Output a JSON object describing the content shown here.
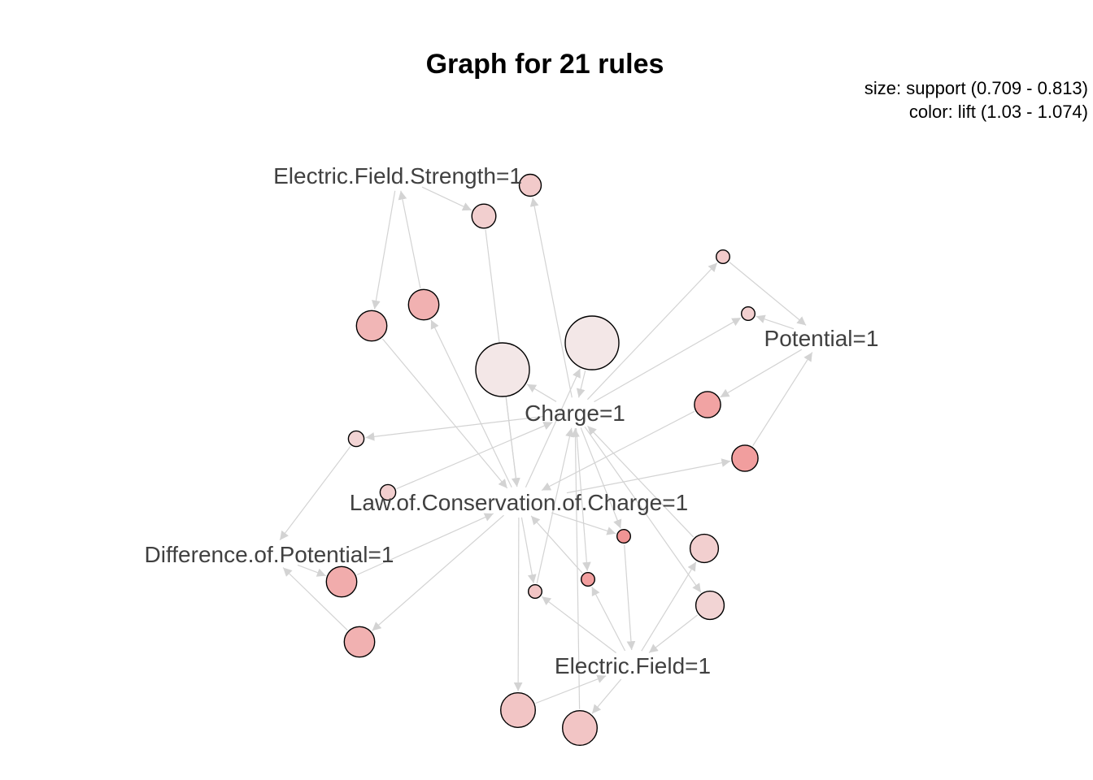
{
  "title": "Graph for 21 rules",
  "legend": {
    "size": "size: support (0.709 - 0.813)",
    "color": "color: lift (1.03 - 1.074)"
  },
  "colors": {
    "edge": "#d3d3d3",
    "label": "#404040",
    "node_stroke": "#000000",
    "lift_low": "#f3ecec",
    "lift_high": "#f08a8a"
  },
  "items": [
    {
      "id": "efs",
      "label": "Electric.Field.Strength=1"
    },
    {
      "id": "charge",
      "label": "Charge=1"
    },
    {
      "id": "potential",
      "label": "Potential=1"
    },
    {
      "id": "law",
      "label": "Law.of.Conservation.of.Charge=1"
    },
    {
      "id": "diff",
      "label": "Difference.of.Potential=1"
    },
    {
      "id": "ef",
      "label": "Electric.Field=1"
    }
  ],
  "rules": [
    {
      "id": "r1",
      "support_level": 0.25,
      "lift_level": 0.35
    },
    {
      "id": "r2",
      "support_level": 0.3,
      "lift_level": 0.3
    },
    {
      "id": "r3",
      "support_level": 0.05,
      "lift_level": 0.35
    },
    {
      "id": "r4",
      "support_level": 0.05,
      "lift_level": 0.3
    },
    {
      "id": "r5",
      "support_level": 0.45,
      "lift_level": 0.55
    },
    {
      "id": "r6",
      "support_level": 0.45,
      "lift_level": 0.6
    },
    {
      "id": "r7",
      "support_level": 1.0,
      "lift_level": 0.05
    },
    {
      "id": "r8",
      "support_level": 1.0,
      "lift_level": 0.05
    },
    {
      "id": "r9",
      "support_level": 0.35,
      "lift_level": 0.75
    },
    {
      "id": "r10",
      "support_level": 0.35,
      "lift_level": 0.8
    },
    {
      "id": "r11",
      "support_level": 0.1,
      "lift_level": 0.25
    },
    {
      "id": "r12",
      "support_level": 0.1,
      "lift_level": 0.3
    },
    {
      "id": "r13",
      "support_level": 0.05,
      "lift_level": 0.9
    },
    {
      "id": "r14",
      "support_level": 0.4,
      "lift_level": 0.3
    },
    {
      "id": "r15",
      "support_level": 0.05,
      "lift_level": 0.4
    },
    {
      "id": "r16",
      "support_level": 0.05,
      "lift_level": 0.8
    },
    {
      "id": "r17",
      "support_level": 0.4,
      "lift_level": 0.25
    },
    {
      "id": "r18",
      "support_level": 0.45,
      "lift_level": 0.65
    },
    {
      "id": "r19",
      "support_level": 0.45,
      "lift_level": 0.6
    },
    {
      "id": "r20",
      "support_level": 0.55,
      "lift_level": 0.4
    },
    {
      "id": "r21",
      "support_level": 0.55,
      "lift_level": 0.4
    }
  ],
  "edges": [
    {
      "from": "efs",
      "to": "r5"
    },
    {
      "from": "efs",
      "to": "r2"
    },
    {
      "from": "r6",
      "to": "efs"
    },
    {
      "from": "charge",
      "to": "r1"
    },
    {
      "from": "r2",
      "to": "law"
    },
    {
      "from": "r5",
      "to": "law"
    },
    {
      "from": "law",
      "to": "r6"
    },
    {
      "from": "charge",
      "to": "r3"
    },
    {
      "from": "charge",
      "to": "r4"
    },
    {
      "from": "r3",
      "to": "potential"
    },
    {
      "from": "potential",
      "to": "r4"
    },
    {
      "from": "r7",
      "to": "law"
    },
    {
      "from": "charge",
      "to": "r7"
    },
    {
      "from": "law",
      "to": "r8"
    },
    {
      "from": "r8",
      "to": "charge"
    },
    {
      "from": "potential",
      "to": "r9"
    },
    {
      "from": "r9",
      "to": "law"
    },
    {
      "from": "law",
      "to": "r10"
    },
    {
      "from": "r10",
      "to": "potential"
    },
    {
      "from": "charge",
      "to": "r11"
    },
    {
      "from": "r11",
      "to": "diff"
    },
    {
      "from": "r12",
      "to": "charge"
    },
    {
      "from": "diff",
      "to": "r18"
    },
    {
      "from": "r18",
      "to": "law"
    },
    {
      "from": "law",
      "to": "r19"
    },
    {
      "from": "r19",
      "to": "diff"
    },
    {
      "from": "charge",
      "to": "r13"
    },
    {
      "from": "law",
      "to": "r13"
    },
    {
      "from": "r13",
      "to": "ef"
    },
    {
      "from": "law",
      "to": "r15"
    },
    {
      "from": "ef",
      "to": "r15"
    },
    {
      "from": "r15",
      "to": "charge"
    },
    {
      "from": "charge",
      "to": "r16"
    },
    {
      "from": "ef",
      "to": "r16"
    },
    {
      "from": "r16",
      "to": "law"
    },
    {
      "from": "ef",
      "to": "r14"
    },
    {
      "from": "r14",
      "to": "charge"
    },
    {
      "from": "charge",
      "to": "r17"
    },
    {
      "from": "r17",
      "to": "ef"
    },
    {
      "from": "law",
      "to": "r20"
    },
    {
      "from": "r20",
      "to": "ef"
    },
    {
      "from": "ef",
      "to": "r21"
    },
    {
      "from": "r21",
      "to": "charge"
    }
  ]
}
